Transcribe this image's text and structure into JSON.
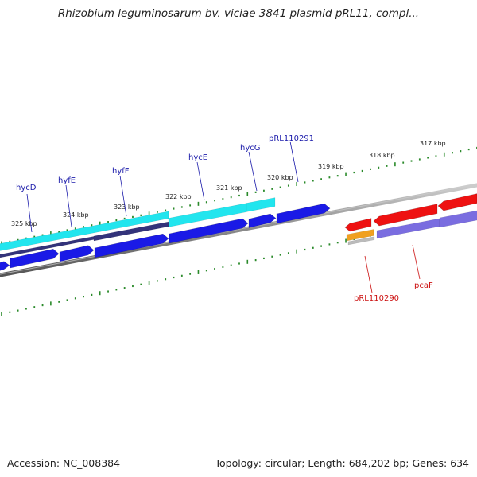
{
  "title": "Rhizobium leguminosarum bv. viciae 3841 plasmid pRL11, compl...",
  "footer": {
    "accession": "Accession: NC_008384",
    "topology": "Topology: circular; Length: 684,202 bp; Genes: 634"
  },
  "colors": {
    "forward_cds": "#1a1ae6",
    "forward_dark": "#33337a",
    "forward_rna": "#22e5ee",
    "reverse_cds": "#ee1111",
    "reverse_light": "#7a6de0",
    "reverse_orange": "#f0a020",
    "ticks": "#2a8a2a",
    "backbone": "#888888",
    "forward_label": "#1a1aaa",
    "reverse_label": "#cc1111"
  },
  "kbp_labels": [
    "325 kbp",
    "324 kbp",
    "323 kbp",
    "322 kbp",
    "321 kbp",
    "320 kbp",
    "319 kbp",
    "318 kbp",
    "317 kbp"
  ],
  "forward_genes": [
    "hycD",
    "hyfE",
    "hyfF",
    "hycE",
    "hycG",
    "pRL110291"
  ],
  "reverse_genes": [
    "pRL110290",
    "pcaF"
  ]
}
